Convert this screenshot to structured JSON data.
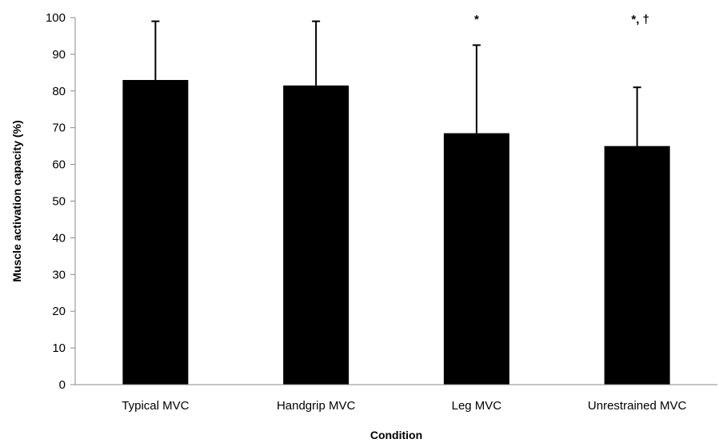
{
  "chart_data": {
    "type": "bar",
    "categories": [
      "Typical MVC",
      "Handgrip MVC",
      "Leg MVC",
      "Unrestrained MVC"
    ],
    "values": [
      83,
      81.5,
      68.5,
      65
    ],
    "error_upper": [
      99,
      99,
      92.5,
      81
    ],
    "annotations": [
      "",
      "",
      "*",
      "*, †"
    ],
    "title": "",
    "xlabel": "Condition",
    "ylabel": "Muscle activation capacity (%)",
    "ylim": [
      0,
      100
    ],
    "yticks": [
      0,
      10,
      20,
      30,
      40,
      50,
      60,
      70,
      80,
      90,
      100
    ],
    "grid": false,
    "legend": "none",
    "bar_color": "#000000",
    "axis_color": "#888888"
  }
}
